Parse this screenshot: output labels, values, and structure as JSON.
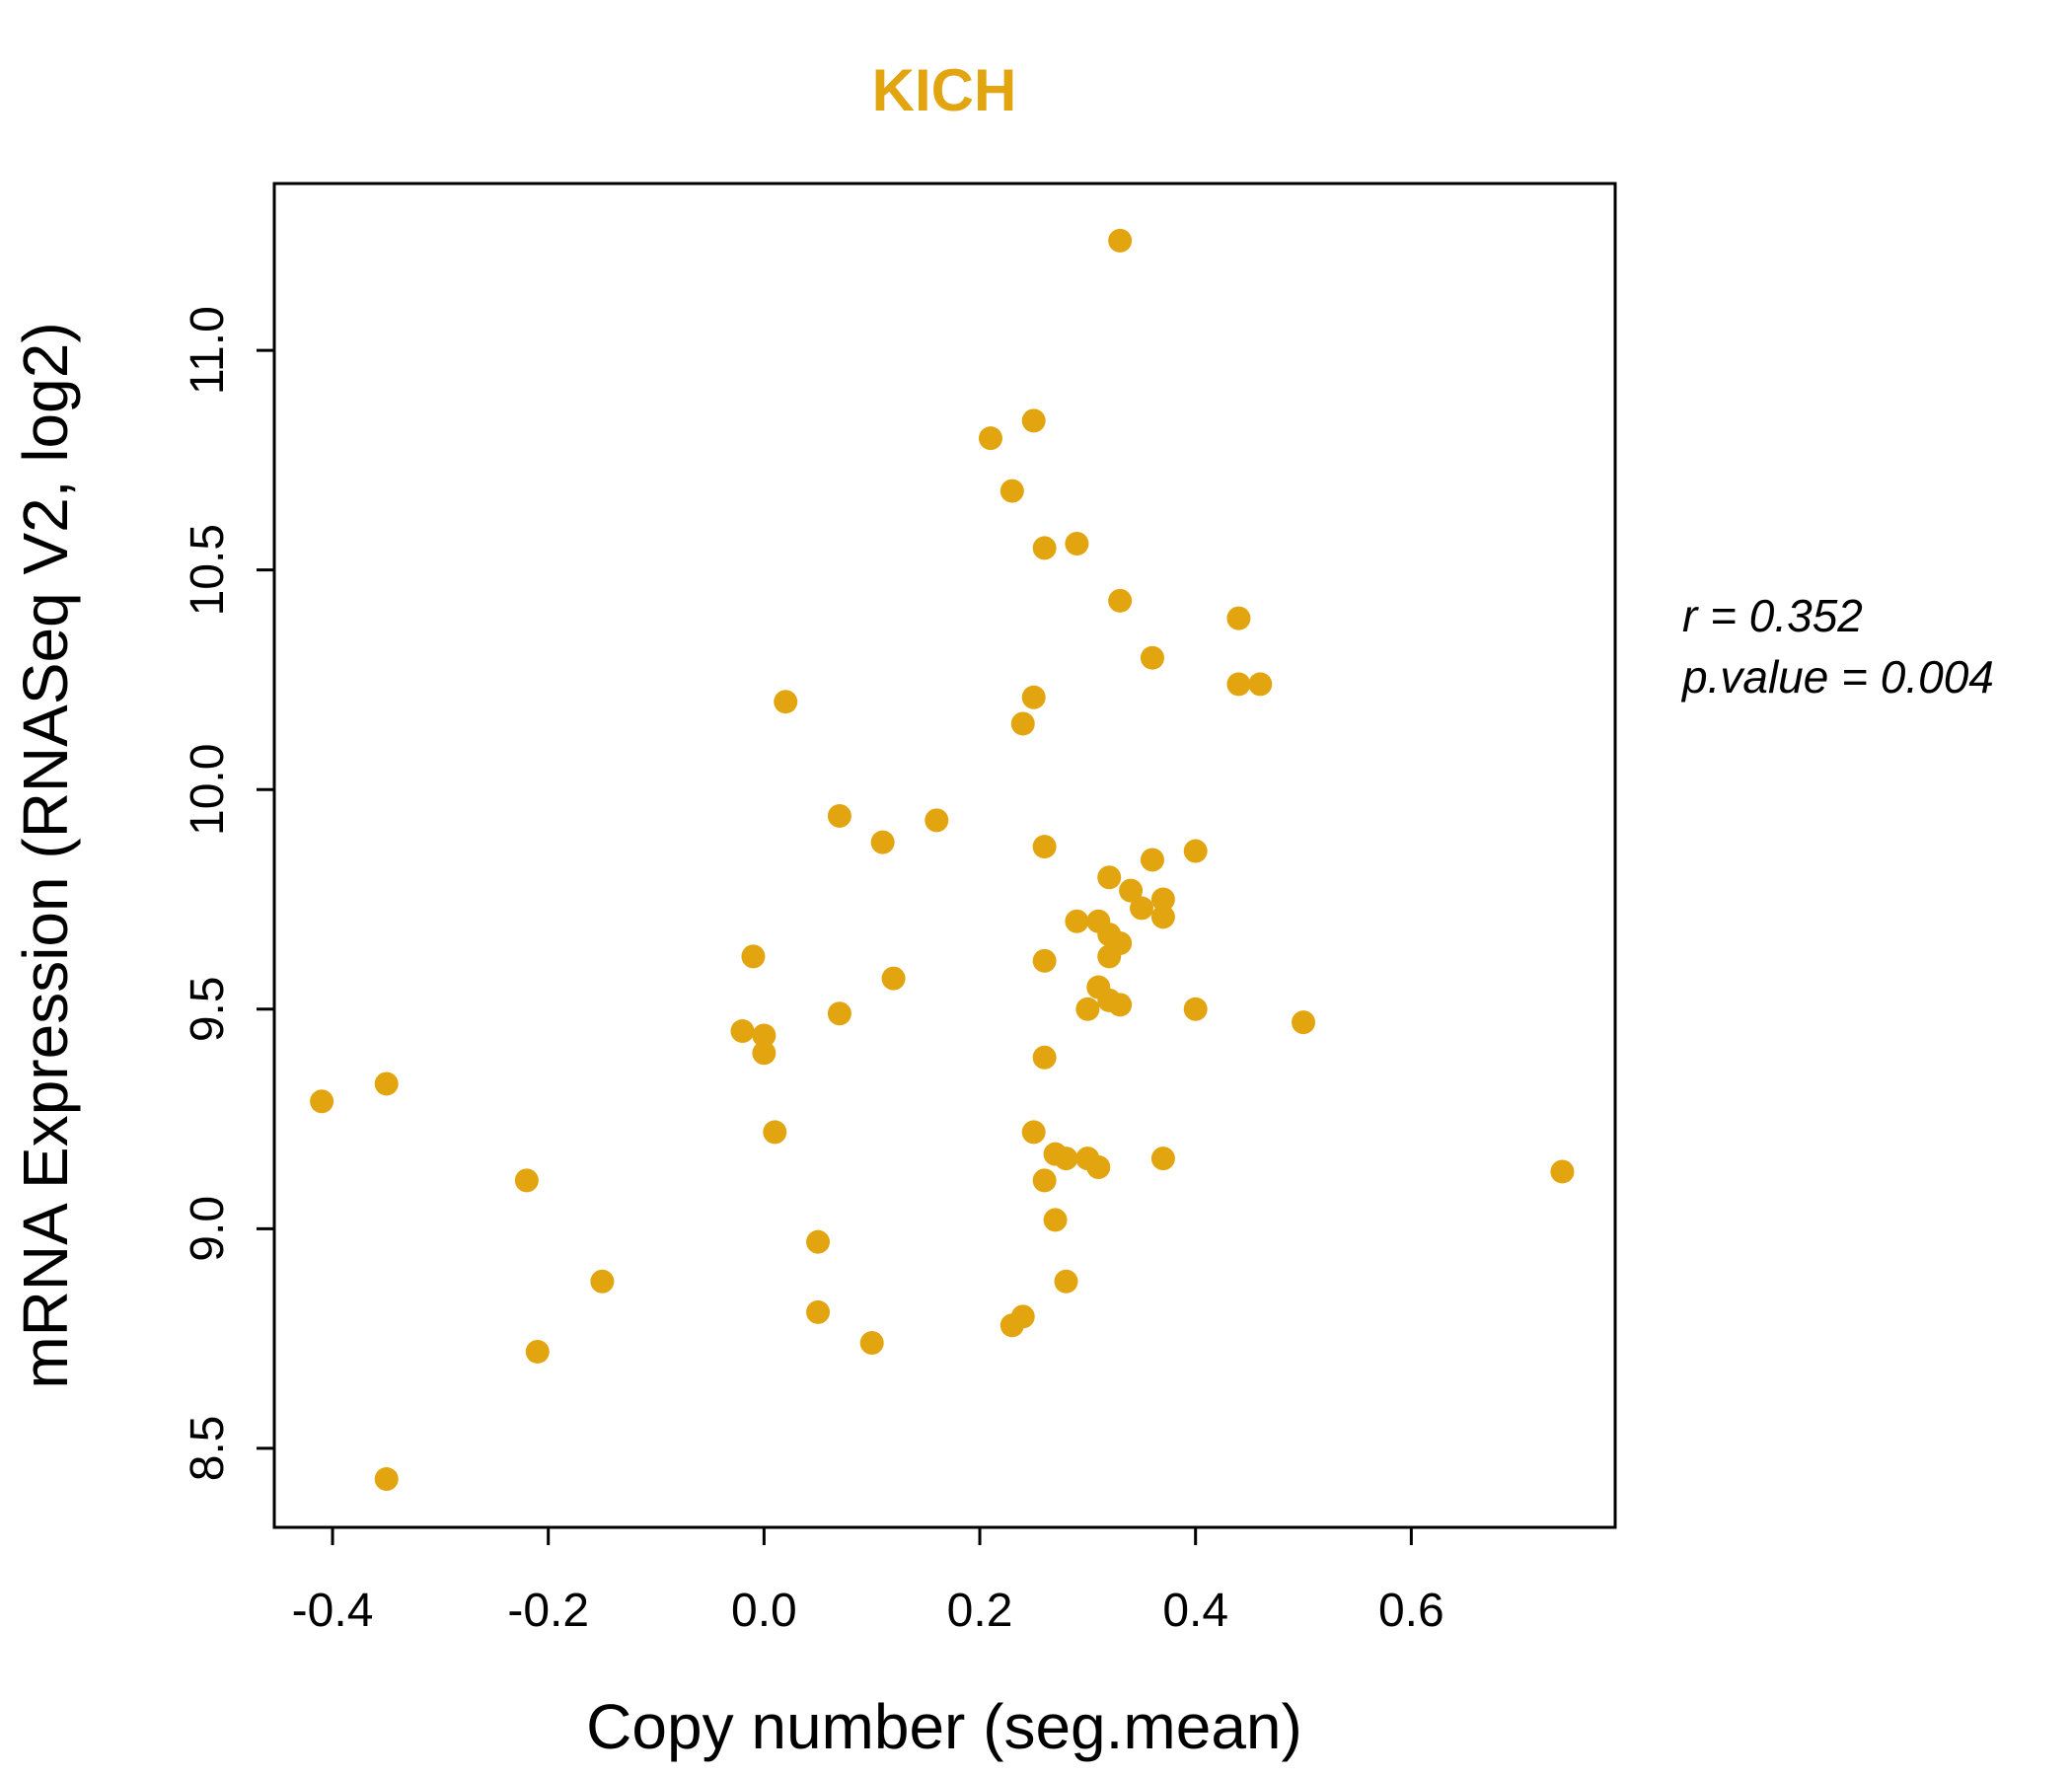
{
  "figure": {
    "background": "#ffffff"
  },
  "chart_data": {
    "type": "scatter",
    "title": "KICH",
    "title_color": "#E2A50F",
    "point_color": "#E2A50F",
    "axis_color": "#000000",
    "xlabel": "Copy number (seg.mean)",
    "ylabel": "mRNA Expression (RNASeq V2, log2)",
    "xlim": [
      -0.454,
      0.789
    ],
    "ylim": [
      8.32,
      11.38
    ],
    "xticks": [
      "-0.4",
      "-0.2",
      "0.0",
      "0.2",
      "0.4",
      "0.6"
    ],
    "yticks": [
      "8.5",
      "9.0",
      "9.5",
      "10.0",
      "10.5",
      "11.0"
    ],
    "grid": false,
    "legend": "none",
    "annotations": [
      "r = 0.352",
      "p.value = 0.004"
    ],
    "stats": {
      "r": 0.352,
      "p_value": 0.004
    },
    "points": [
      [
        0.33,
        11.25
      ],
      [
        0.21,
        10.8
      ],
      [
        0.25,
        10.84
      ],
      [
        0.23,
        10.68
      ],
      [
        0.26,
        10.55
      ],
      [
        0.29,
        10.56
      ],
      [
        0.33,
        10.43
      ],
      [
        0.44,
        10.39
      ],
      [
        0.36,
        10.3
      ],
      [
        0.44,
        10.24
      ],
      [
        0.46,
        10.24
      ],
      [
        0.02,
        10.2
      ],
      [
        0.25,
        10.21
      ],
      [
        0.24,
        10.15
      ],
      [
        0.07,
        9.94
      ],
      [
        0.16,
        9.93
      ],
      [
        0.11,
        9.88
      ],
      [
        0.26,
        9.87
      ],
      [
        0.36,
        9.84
      ],
      [
        0.4,
        9.86
      ],
      [
        0.32,
        9.8
      ],
      [
        0.34,
        9.77
      ],
      [
        0.35,
        9.73
      ],
      [
        0.37,
        9.75
      ],
      [
        0.37,
        9.71
      ],
      [
        0.29,
        9.7
      ],
      [
        0.31,
        9.7
      ],
      [
        0.32,
        9.67
      ],
      [
        0.33,
        9.65
      ],
      [
        0.32,
        9.62
      ],
      [
        -0.01,
        9.62
      ],
      [
        0.26,
        9.61
      ],
      [
        0.12,
        9.57
      ],
      [
        0.31,
        9.55
      ],
      [
        0.32,
        9.52
      ],
      [
        0.3,
        9.5
      ],
      [
        0.33,
        9.51
      ],
      [
        0.07,
        9.49
      ],
      [
        0.4,
        9.5
      ],
      [
        0.5,
        9.47
      ],
      [
        -0.02,
        9.45
      ],
      [
        0.0,
        9.44
      ],
      [
        0.0,
        9.4
      ],
      [
        0.26,
        9.39
      ],
      [
        -0.41,
        9.29
      ],
      [
        -0.35,
        9.33
      ],
      [
        0.01,
        9.22
      ],
      [
        0.25,
        9.22
      ],
      [
        0.27,
        9.17
      ],
      [
        0.28,
        9.16
      ],
      [
        0.3,
        9.16
      ],
      [
        0.31,
        9.14
      ],
      [
        0.37,
        9.16
      ],
      [
        0.26,
        9.11
      ],
      [
        0.74,
        9.13
      ],
      [
        -0.22,
        9.11
      ],
      [
        0.27,
        9.02
      ],
      [
        0.05,
        8.97
      ],
      [
        -0.15,
        8.88
      ],
      [
        0.28,
        8.88
      ],
      [
        0.05,
        8.81
      ],
      [
        0.24,
        8.8
      ],
      [
        0.23,
        8.78
      ],
      [
        0.1,
        8.74
      ],
      [
        -0.21,
        8.72
      ],
      [
        -0.35,
        8.43
      ]
    ]
  }
}
